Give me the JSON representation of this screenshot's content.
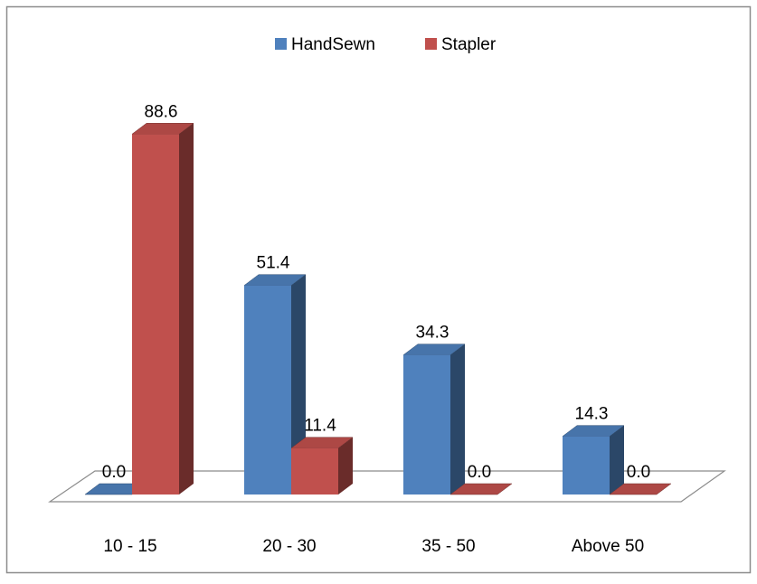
{
  "chart_data": {
    "type": "bar",
    "categories": [
      "10 - 15",
      "20 - 30",
      "35 - 50",
      "Above 50"
    ],
    "series": [
      {
        "name": "HandSewn",
        "color": "#4F81BD",
        "values": [
          0.0,
          51.4,
          34.3,
          14.3
        ]
      },
      {
        "name": "Stapler",
        "color": "#C0504D",
        "values": [
          88.6,
          11.4,
          0.0,
          0.0
        ]
      }
    ],
    "value_labels": [
      [
        "0.0",
        "51.4",
        "34.3",
        "14.3"
      ],
      [
        "88.6",
        "11.4",
        "0.0",
        "0.0"
      ]
    ],
    "title": "",
    "xlabel": "",
    "ylabel": "",
    "ylim": [
      0,
      100
    ],
    "grid": false,
    "legend": "top-center",
    "style": "3d-clustered-column"
  }
}
